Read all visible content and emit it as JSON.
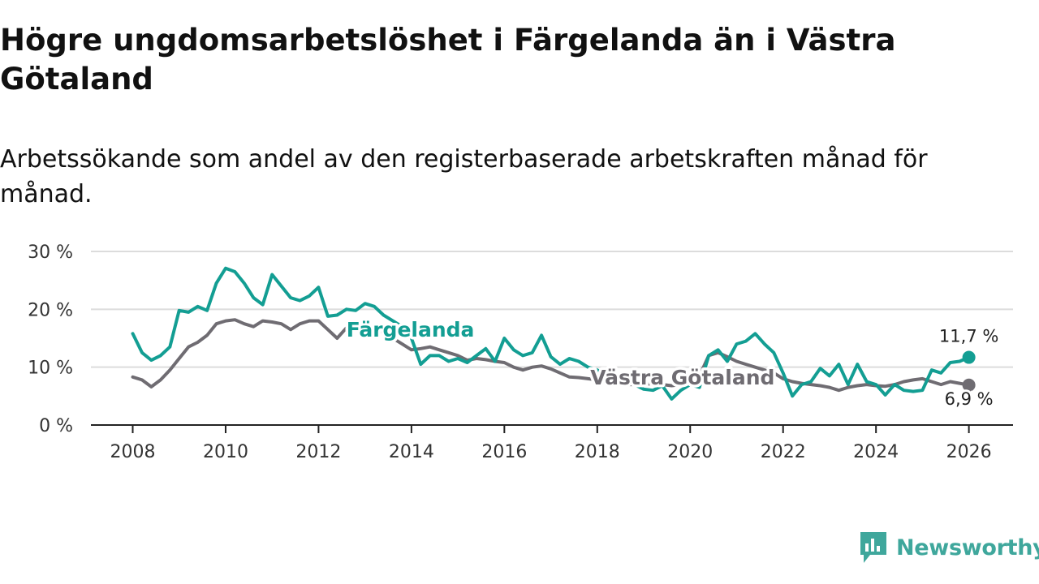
{
  "title": "Högre ungdomsarbetslöshet i Färgelanda än i Västra Götaland",
  "subtitle": "Arbetssökande som andel av den registerbaserade arbetskraften månad för månad.",
  "logo": {
    "text": "Newsworthy",
    "icon": "newsworthy-logo-icon",
    "color": "#3fa79c"
  },
  "chart_data": {
    "type": "line",
    "y_ticks": [
      "0 %",
      "10 %",
      "20 %",
      "30 %"
    ],
    "y_tick_values": [
      0,
      10,
      20,
      30
    ],
    "x_ticks": [
      "2008",
      "2010",
      "2012",
      "2014",
      "2016",
      "2018",
      "2020",
      "2022",
      "2024",
      "2026"
    ],
    "x_tick_values": [
      2008,
      2010,
      2012,
      2014,
      2016,
      2018,
      2020,
      2022,
      2024,
      2026
    ],
    "xlim": [
      2007.1,
      2026.95
    ],
    "ylim": [
      0,
      30
    ],
    "grid": true,
    "series": [
      {
        "name": "Färgelanda",
        "label": "Färgelanda",
        "color": "#139e93",
        "end_label": "11,7 %",
        "x": [
          2008.0,
          2008.2,
          2008.4,
          2008.6,
          2008.8,
          2009.0,
          2009.2,
          2009.4,
          2009.6,
          2009.8,
          2010.0,
          2010.2,
          2010.4,
          2010.6,
          2010.8,
          2011.0,
          2011.2,
          2011.4,
          2011.6,
          2011.8,
          2012.0,
          2012.2,
          2012.4,
          2012.6,
          2012.8,
          2013.0,
          2013.2,
          2013.4,
          2013.6,
          2013.8,
          2014.0,
          2014.2,
          2014.4,
          2014.6,
          2014.8,
          2015.0,
          2015.2,
          2015.4,
          2015.6,
          2015.8,
          2016.0,
          2016.2,
          2016.4,
          2016.6,
          2016.8,
          2017.0,
          2017.2,
          2017.4,
          2017.6,
          2017.8,
          2018.0,
          2018.2,
          2018.4,
          2018.6,
          2018.8,
          2019.0,
          2019.2,
          2019.4,
          2019.6,
          2019.8,
          2020.0,
          2020.2,
          2020.4,
          2020.6,
          2020.8,
          2021.0,
          2021.2,
          2021.4,
          2021.6,
          2021.8,
          2022.0,
          2022.2,
          2022.4,
          2022.6,
          2022.8,
          2023.0,
          2023.2,
          2023.4,
          2023.6,
          2023.8,
          2024.0,
          2024.2,
          2024.4,
          2024.6,
          2024.8,
          2025.0,
          2025.2,
          2025.4,
          2025.6,
          2025.8,
          2026.0
        ],
        "y": [
          15.8,
          12.5,
          11.2,
          12.0,
          13.5,
          19.8,
          19.5,
          20.5,
          19.8,
          24.5,
          27.1,
          26.5,
          24.5,
          22.0,
          20.8,
          26.0,
          24.0,
          22.0,
          21.5,
          22.3,
          23.8,
          18.8,
          19.0,
          20.0,
          19.8,
          21.0,
          20.5,
          19.0,
          18.0,
          17.0,
          15.0,
          10.5,
          12.0,
          12.0,
          11.0,
          11.5,
          10.8,
          12.0,
          13.2,
          11.0,
          15.0,
          13.0,
          12.0,
          12.5,
          15.5,
          11.8,
          10.5,
          11.5,
          11.0,
          10.0,
          9.5,
          8.5,
          8.0,
          7.5,
          7.0,
          6.2,
          6.0,
          6.8,
          4.5,
          6.0,
          7.0,
          6.5,
          12.0,
          13.0,
          11.0,
          14.0,
          14.5,
          15.8,
          14.0,
          12.5,
          9.0,
          5.0,
          7.0,
          7.5,
          9.8,
          8.5,
          10.5,
          7.0,
          10.5,
          7.5,
          7.0,
          5.2,
          7.0,
          6.0,
          5.8,
          6.0,
          9.5,
          9.0,
          10.8,
          11.0,
          11.7
        ]
      },
      {
        "name": "Västra Götaland",
        "label": "Västra Götaland",
        "color": "#6f6c72",
        "end_label": "6,9 %",
        "x": [
          2008.0,
          2008.2,
          2008.4,
          2008.6,
          2008.8,
          2009.0,
          2009.2,
          2009.4,
          2009.6,
          2009.8,
          2010.0,
          2010.2,
          2010.4,
          2010.6,
          2010.8,
          2011.0,
          2011.2,
          2011.4,
          2011.6,
          2011.8,
          2012.0,
          2012.2,
          2012.4,
          2012.6,
          2012.8,
          2013.0,
          2013.2,
          2013.4,
          2013.6,
          2013.8,
          2014.0,
          2014.2,
          2014.4,
          2014.6,
          2014.8,
          2015.0,
          2015.2,
          2015.4,
          2015.6,
          2015.8,
          2016.0,
          2016.2,
          2016.4,
          2016.6,
          2016.8,
          2017.0,
          2017.2,
          2017.4,
          2017.6,
          2017.8,
          2018.0,
          2018.2,
          2018.4,
          2018.6,
          2018.8,
          2019.0,
          2019.2,
          2019.4,
          2019.6,
          2019.8,
          2020.0,
          2020.2,
          2020.4,
          2020.6,
          2020.8,
          2021.0,
          2021.2,
          2021.4,
          2021.6,
          2021.8,
          2022.0,
          2022.2,
          2022.4,
          2022.6,
          2022.8,
          2023.0,
          2023.2,
          2023.4,
          2023.6,
          2023.8,
          2024.0,
          2024.2,
          2024.4,
          2024.6,
          2024.8,
          2025.0,
          2025.2,
          2025.4,
          2025.6,
          2025.8,
          2026.0
        ],
        "y": [
          8.3,
          7.8,
          6.6,
          7.8,
          9.5,
          11.5,
          13.5,
          14.3,
          15.5,
          17.5,
          18.0,
          18.2,
          17.5,
          17.0,
          18.0,
          17.8,
          17.5,
          16.5,
          17.5,
          18.0,
          18.0,
          16.5,
          15.0,
          16.8,
          17.5,
          17.5,
          16.5,
          16.0,
          15.0,
          14.0,
          13.0,
          13.2,
          13.5,
          13.0,
          12.5,
          12.0,
          11.2,
          11.5,
          11.3,
          11.0,
          10.8,
          10.0,
          9.5,
          10.0,
          10.2,
          9.7,
          9.0,
          8.3,
          8.2,
          8.0,
          7.8,
          7.5,
          7.3,
          7.0,
          7.0,
          7.0,
          7.2,
          7.0,
          6.8,
          7.0,
          7.5,
          8.5,
          12.0,
          12.5,
          11.8,
          11.0,
          10.5,
          10.0,
          9.5,
          9.0,
          8.0,
          7.5,
          7.2,
          7.0,
          6.8,
          6.5,
          6.0,
          6.5,
          6.8,
          7.0,
          6.8,
          6.7,
          7.0,
          7.5,
          7.8,
          8.0,
          7.5,
          7.0,
          7.5,
          7.2,
          6.9
        ]
      }
    ]
  }
}
